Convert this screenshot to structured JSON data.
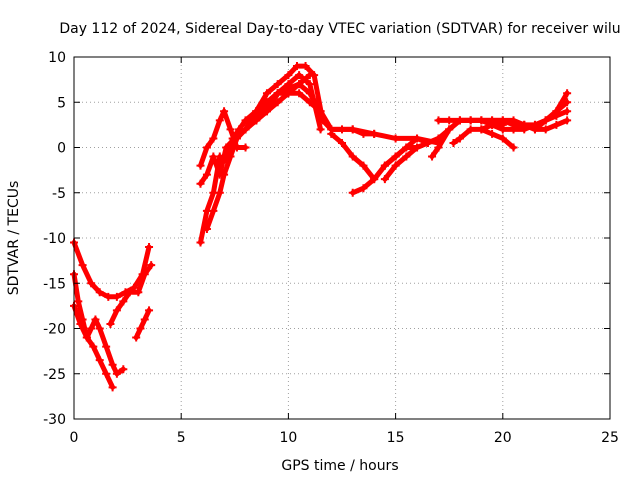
{
  "chart_data": {
    "type": "line",
    "title": "Day 112 of 2024, Sidereal Day-to-day VTEC variation (SDTVAR) for receiver wilu",
    "xlabel": "GPS time / hours",
    "ylabel": "SDTVAR / TECUs",
    "xlim": [
      0,
      25
    ],
    "ylim": [
      -30,
      10
    ],
    "xticks": [
      0,
      5,
      10,
      15,
      20,
      25
    ],
    "yticks": [
      -30,
      -25,
      -20,
      -15,
      -10,
      -5,
      0,
      5,
      10
    ],
    "grid": true,
    "color": "#ff0000",
    "series": [
      {
        "name": "s1",
        "x": [
          0.0,
          0.4,
          0.8,
          1.2,
          1.6,
          2.0,
          2.4,
          2.8,
          3.2,
          3.5
        ],
        "y": [
          -10.5,
          -13,
          -15,
          -16,
          -16.5,
          -16.5,
          -16,
          -15.5,
          -14,
          -11
        ]
      },
      {
        "name": "s2",
        "x": [
          0.0,
          0.2,
          0.4,
          0.6,
          0.8,
          1.0,
          1.2,
          1.5,
          1.8,
          2.0,
          2.3
        ],
        "y": [
          -14,
          -17,
          -19,
          -21,
          -20,
          -19,
          -20,
          -22,
          -24,
          -25,
          -24.5
        ]
      },
      {
        "name": "s3",
        "x": [
          0.0,
          0.3,
          0.6,
          0.9,
          1.2,
          1.5,
          1.8
        ],
        "y": [
          -17.5,
          -19.5,
          -21,
          -22,
          -23.5,
          -25,
          -26.5
        ]
      },
      {
        "name": "s4",
        "x": [
          1.7,
          2.0,
          2.3,
          2.6,
          3.0,
          3.3,
          3.6
        ],
        "y": [
          -19.5,
          -18,
          -17,
          -16,
          -16,
          -14,
          -13
        ]
      },
      {
        "name": "s5",
        "x": [
          2.9,
          3.1,
          3.3,
          3.5
        ],
        "y": [
          -21,
          -20,
          -19,
          -18
        ]
      },
      {
        "name": "s6",
        "x": [
          5.9,
          6.2,
          6.5,
          6.8,
          7.1,
          7.4,
          7.7,
          8.0,
          8.5,
          9.0,
          9.5,
          10.0,
          10.5,
          11.0
        ],
        "y": [
          -10.5,
          -7,
          -5,
          -1,
          -1.5,
          1,
          2,
          3,
          4,
          5,
          6,
          6,
          7,
          8
        ]
      },
      {
        "name": "s7",
        "x": [
          5.9,
          6.2,
          6.5,
          6.8,
          7.1,
          7.5,
          8.0,
          8.5,
          9.0,
          9.5,
          10.0,
          10.5,
          11.0,
          11.5
        ],
        "y": [
          -4,
          -3,
          -1,
          -3,
          0,
          1,
          2,
          3,
          4,
          6,
          7,
          8,
          7,
          2
        ]
      },
      {
        "name": "s8",
        "x": [
          5.9,
          6.2,
          6.5,
          6.8,
          7.0,
          7.3,
          7.6,
          8.0
        ],
        "y": [
          -2,
          0,
          1,
          3,
          4,
          2,
          0,
          0
        ]
      },
      {
        "name": "s9",
        "x": [
          6.2,
          6.5,
          6.8,
          7.0,
          7.3,
          7.6,
          8.0,
          8.5,
          9.0,
          9.5,
          10.0,
          10.5,
          11.0,
          11.5
        ],
        "y": [
          -9,
          -7,
          -5,
          -3,
          -1,
          1,
          2,
          3,
          4,
          5,
          6,
          6,
          5,
          4
        ]
      },
      {
        "name": "s10",
        "x": [
          8.0,
          8.5,
          9.0,
          9.5,
          10.0,
          10.4,
          10.8,
          11.2,
          11.6,
          12.0,
          12.5,
          13.0,
          13.5,
          14.0
        ],
        "y": [
          2,
          4,
          6,
          7,
          8,
          9,
          9,
          8,
          3,
          2,
          2,
          2,
          1.5,
          1.5
        ]
      },
      {
        "name": "s11",
        "x": [
          8.5,
          9.0,
          9.5,
          10.0,
          10.5,
          11.0,
          11.5,
          12.0,
          13.0,
          14.0,
          15.0,
          16.0,
          17.0
        ],
        "y": [
          3,
          5,
          6,
          6.5,
          7,
          6,
          4,
          2,
          2,
          1.5,
          1,
          1,
          0.5
        ]
      },
      {
        "name": "s12",
        "x": [
          12.0,
          12.5,
          13.0,
          13.5,
          14.0,
          14.5,
          15.0,
          15.5,
          16.0,
          16.5,
          17.0
        ],
        "y": [
          1.5,
          0.5,
          -1,
          -2,
          -3.5,
          -2,
          -1,
          0,
          0,
          0.5,
          1
        ]
      },
      {
        "name": "s13",
        "x": [
          13.0,
          13.5,
          14.0,
          14.5,
          15.0,
          15.5,
          16.0,
          16.5,
          17.0
        ],
        "y": [
          -5,
          -4.5,
          -3.5,
          -2,
          -1,
          0,
          1,
          0.5,
          1
        ]
      },
      {
        "name": "s14",
        "x": [
          14.5,
          15.0,
          15.5,
          16.0,
          16.5,
          17.0,
          17.5,
          18.0,
          18.5,
          19.0,
          19.5,
          20.0
        ],
        "y": [
          -3.5,
          -2,
          -1,
          0,
          0.5,
          1,
          2,
          3,
          3,
          3,
          2.5,
          2.5
        ]
      },
      {
        "name": "s15",
        "x": [
          16.7,
          17.0,
          17.5,
          18.0,
          18.5,
          19.0,
          19.5,
          20.0,
          20.5,
          21.0,
          21.5,
          22.0,
          22.5,
          23.0
        ],
        "y": [
          -1,
          0,
          2,
          3,
          3,
          3,
          3,
          3,
          2.5,
          2.5,
          2.5,
          3,
          4,
          6
        ]
      },
      {
        "name": "s16",
        "x": [
          17.0,
          17.5,
          18.0,
          18.5,
          19.0,
          19.5,
          20.0,
          20.5,
          21.0,
          21.5,
          22.0,
          22.5,
          23.0
        ],
        "y": [
          3,
          3,
          3,
          3,
          3,
          3,
          3,
          3,
          2.5,
          2,
          2,
          2.5,
          3
        ]
      },
      {
        "name": "s17",
        "x": [
          17.7,
          18.0,
          18.5,
          19.0,
          19.5,
          20.0,
          20.5
        ],
        "y": [
          0.5,
          1,
          2,
          2,
          1.5,
          1,
          0
        ]
      },
      {
        "name": "s18",
        "x": [
          19.0,
          19.5,
          20.0,
          20.5,
          21.0,
          21.5,
          22.0,
          22.5,
          23.0
        ],
        "y": [
          2,
          2.5,
          2,
          2,
          2,
          2.5,
          3,
          3.5,
          4
        ]
      },
      {
        "name": "s19",
        "x": [
          20.5,
          21.0,
          21.5,
          22.0,
          22.5,
          23.0
        ],
        "y": [
          2,
          2.5,
          2,
          3,
          4,
          5
        ]
      }
    ]
  }
}
